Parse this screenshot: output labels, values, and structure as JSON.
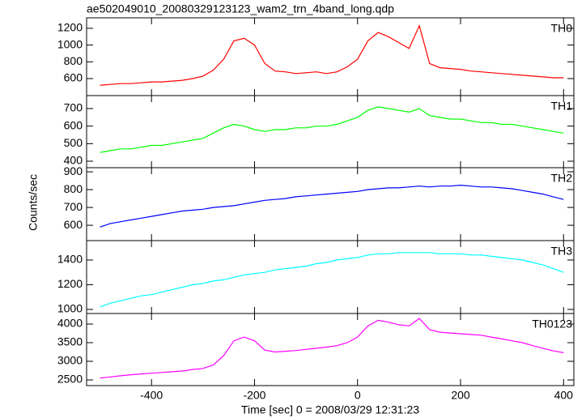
{
  "chart_data": {
    "type": "line",
    "title": "ae502049010_20080329123123_wam2_trn_4band_long.qdp",
    "x_label": "Time [sec] 0 = 2008/03/29 12:31:23",
    "y_label": "Counts/sec",
    "xlim": [
      -526,
      420
    ],
    "xticks": [
      -400,
      -200,
      0,
      200,
      400
    ],
    "x": [
      -500,
      -480,
      -460,
      -440,
      -420,
      -400,
      -380,
      -360,
      -340,
      -320,
      -300,
      -280,
      -260,
      -240,
      -220,
      -200,
      -180,
      -160,
      -140,
      -120,
      -100,
      -80,
      -60,
      -40,
      -20,
      0,
      20,
      40,
      60,
      80,
      100,
      120,
      140,
      160,
      180,
      200,
      220,
      240,
      260,
      280,
      300,
      320,
      340,
      360,
      380,
      400
    ],
    "series": [
      {
        "name": "TH0",
        "color": "#ff0000",
        "ylim": [
          397,
          1325
        ],
        "yticks": [
          600,
          800,
          1000,
          1200
        ],
        "values": [
          520,
          530,
          540,
          540,
          550,
          560,
          560,
          570,
          580,
          600,
          630,
          700,
          830,
          1050,
          1080,
          1000,
          780,
          690,
          680,
          660,
          670,
          680,
          660,
          680,
          740,
          830,
          1050,
          1150,
          1100,
          1030,
          960,
          1230,
          780,
          730,
          720,
          710,
          690,
          680,
          670,
          660,
          650,
          640,
          630,
          620,
          610,
          610
        ]
      },
      {
        "name": "TH1",
        "color": "#00ff00",
        "ylim": [
          363,
          774
        ],
        "yticks": [
          400,
          500,
          600,
          700
        ],
        "values": [
          450,
          460,
          470,
          470,
          480,
          490,
          490,
          500,
          510,
          520,
          530,
          560,
          590,
          610,
          600,
          580,
          570,
          580,
          580,
          590,
          590,
          600,
          600,
          610,
          630,
          650,
          690,
          710,
          700,
          690,
          680,
          700,
          660,
          650,
          640,
          640,
          630,
          620,
          620,
          610,
          610,
          600,
          590,
          580,
          570,
          560
        ]
      },
      {
        "name": "TH2",
        "color": "#0000ff",
        "ylim": [
          514,
          923
        ],
        "yticks": [
          600,
          700,
          800,
          900
        ],
        "values": [
          590,
          610,
          620,
          630,
          640,
          650,
          660,
          670,
          680,
          685,
          690,
          700,
          705,
          710,
          720,
          730,
          740,
          745,
          750,
          760,
          765,
          770,
          775,
          780,
          785,
          790,
          800,
          805,
          810,
          810,
          815,
          820,
          815,
          820,
          820,
          825,
          820,
          815,
          815,
          810,
          805,
          795,
          785,
          775,
          760,
          745
        ]
      },
      {
        "name": "TH3",
        "color": "#00ffff",
        "ylim": [
          967,
          1557
        ],
        "yticks": [
          1000,
          1200,
          1400
        ],
        "values": [
          1020,
          1050,
          1070,
          1090,
          1110,
          1120,
          1140,
          1160,
          1180,
          1200,
          1210,
          1230,
          1240,
          1260,
          1280,
          1290,
          1300,
          1320,
          1330,
          1340,
          1350,
          1370,
          1380,
          1400,
          1410,
          1420,
          1440,
          1450,
          1450,
          1460,
          1460,
          1460,
          1460,
          1450,
          1450,
          1450,
          1440,
          1440,
          1430,
          1420,
          1410,
          1400,
          1380,
          1360,
          1330,
          1300
        ]
      },
      {
        "name": "TH0123",
        "color": "#ff00ff",
        "ylim": [
          2348,
          4283
        ],
        "yticks": [
          2500,
          3000,
          3500,
          4000
        ],
        "values": [
          2550,
          2580,
          2610,
          2640,
          2660,
          2680,
          2700,
          2720,
          2740,
          2780,
          2810,
          2900,
          3150,
          3550,
          3650,
          3550,
          3300,
          3250,
          3270,
          3290,
          3320,
          3350,
          3380,
          3420,
          3500,
          3650,
          3950,
          4100,
          4050,
          3980,
          3950,
          4150,
          3850,
          3780,
          3760,
          3740,
          3720,
          3700,
          3650,
          3600,
          3550,
          3500,
          3420,
          3350,
          3280,
          3230
        ]
      }
    ]
  }
}
